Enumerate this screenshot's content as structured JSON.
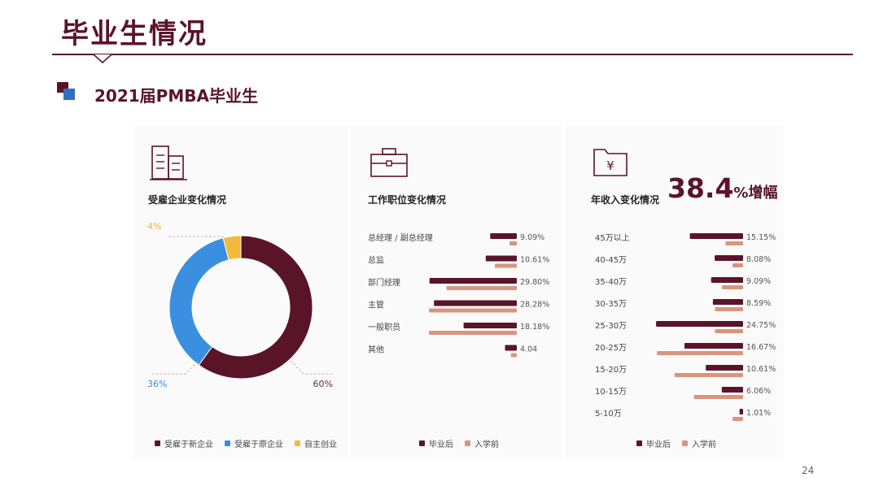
{
  "page": {
    "title": "毕业生情况",
    "subtitle": "2021届PMBA毕业生",
    "page_number": "24"
  },
  "colors": {
    "brand": "#5a1428",
    "after": "#5a1428",
    "before": "#d9957c",
    "new_company": "#5a1428",
    "original_company": "#3a8fe0",
    "self_employed": "#f5b93a",
    "accent_square": "#2f6fc0"
  },
  "icons": {
    "employer": "building-icon",
    "position": "briefcase-icon",
    "income": "yuan-folder-icon"
  },
  "income_headline": {
    "label": "年收入变化情况",
    "value": "38.4",
    "pct": "%",
    "suffix": "增幅"
  },
  "chart_data": [
    {
      "type": "pie",
      "title": "受雇企业变化情况",
      "donut": true,
      "categories": [
        "受雇于新企业",
        "受雇于原企业",
        "自主创业"
      ],
      "values": [
        60,
        36,
        4
      ],
      "data_labels": [
        "60%",
        "36%",
        "4%"
      ],
      "legend_position": "bottom"
    },
    {
      "type": "bar",
      "orientation": "horizontal",
      "title": "工作职位变化情况",
      "categories": [
        "总经理 / 副总经理",
        "总监",
        "部门经理",
        "主管",
        "一般职员",
        "其他"
      ],
      "series": [
        {
          "name": "毕业后",
          "values": [
            9.09,
            10.61,
            29.8,
            28.28,
            18.18,
            4.04
          ]
        },
        {
          "name": "入学前",
          "values": [
            2.5,
            7.5,
            24.0,
            30.0,
            30.0,
            2.0
          ]
        }
      ],
      "data_labels": [
        "9.09%",
        "10.61%",
        "29.80%",
        "28.28%",
        "18.18%",
        "4.04"
      ],
      "legend_position": "bottom"
    },
    {
      "type": "bar",
      "orientation": "horizontal",
      "title": "年收入变化情况",
      "categories": [
        "45万以上",
        "40-45万",
        "35-40万",
        "30-35万",
        "25-30万",
        "20-25万",
        "15-20万",
        "10-15万",
        "5-10万"
      ],
      "series": [
        {
          "name": "毕业后",
          "values": [
            15.15,
            8.08,
            9.09,
            8.59,
            24.75,
            16.67,
            10.61,
            6.06,
            1.01
          ]
        },
        {
          "name": "入学前",
          "values": [
            5.0,
            3.0,
            6.0,
            8.0,
            8.0,
            24.5,
            19.5,
            14.0,
            3.0
          ]
        }
      ],
      "data_labels": [
        "15.15%",
        "8.08%",
        "9.09%",
        "8.59%",
        "24.75%",
        "16.67%",
        "10.61%",
        "6.06%",
        "1.01%"
      ],
      "legend_position": "bottom"
    }
  ]
}
